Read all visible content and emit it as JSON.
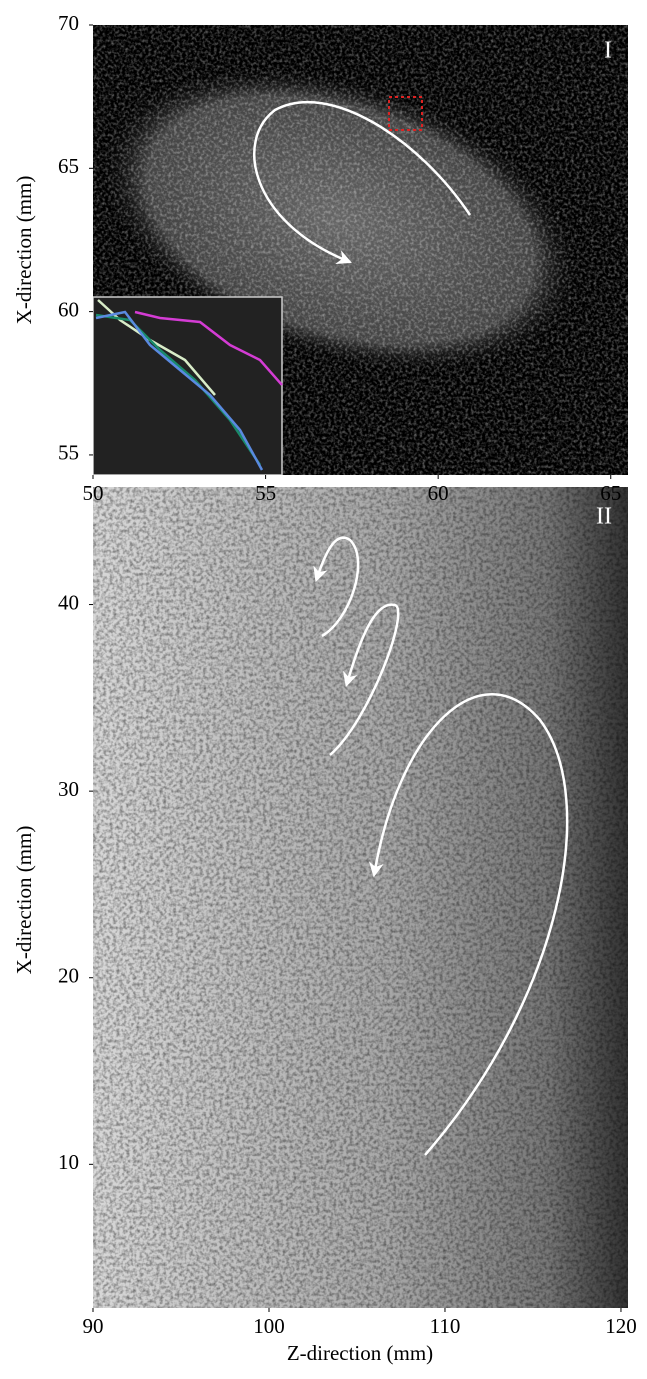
{
  "chart_data": [
    {
      "type": "image",
      "panel_label": "I",
      "y_label": "X-direction (mm)",
      "xlim": [
        50,
        65.5
      ],
      "xticks": [
        50,
        55,
        60,
        65
      ],
      "ylim": [
        54.3,
        70
      ],
      "yticks": [
        55,
        60,
        65,
        70
      ]
    },
    {
      "type": "image",
      "panel_label": "II",
      "x_label": "Z-direction (mm)",
      "y_label": "X-direction (mm)",
      "xlim": [
        90,
        120.4
      ],
      "xticks": [
        90,
        100,
        110,
        120
      ],
      "ylim": [
        2.3,
        46.3
      ],
      "yticks": [
        10,
        20,
        30,
        40
      ]
    }
  ]
}
